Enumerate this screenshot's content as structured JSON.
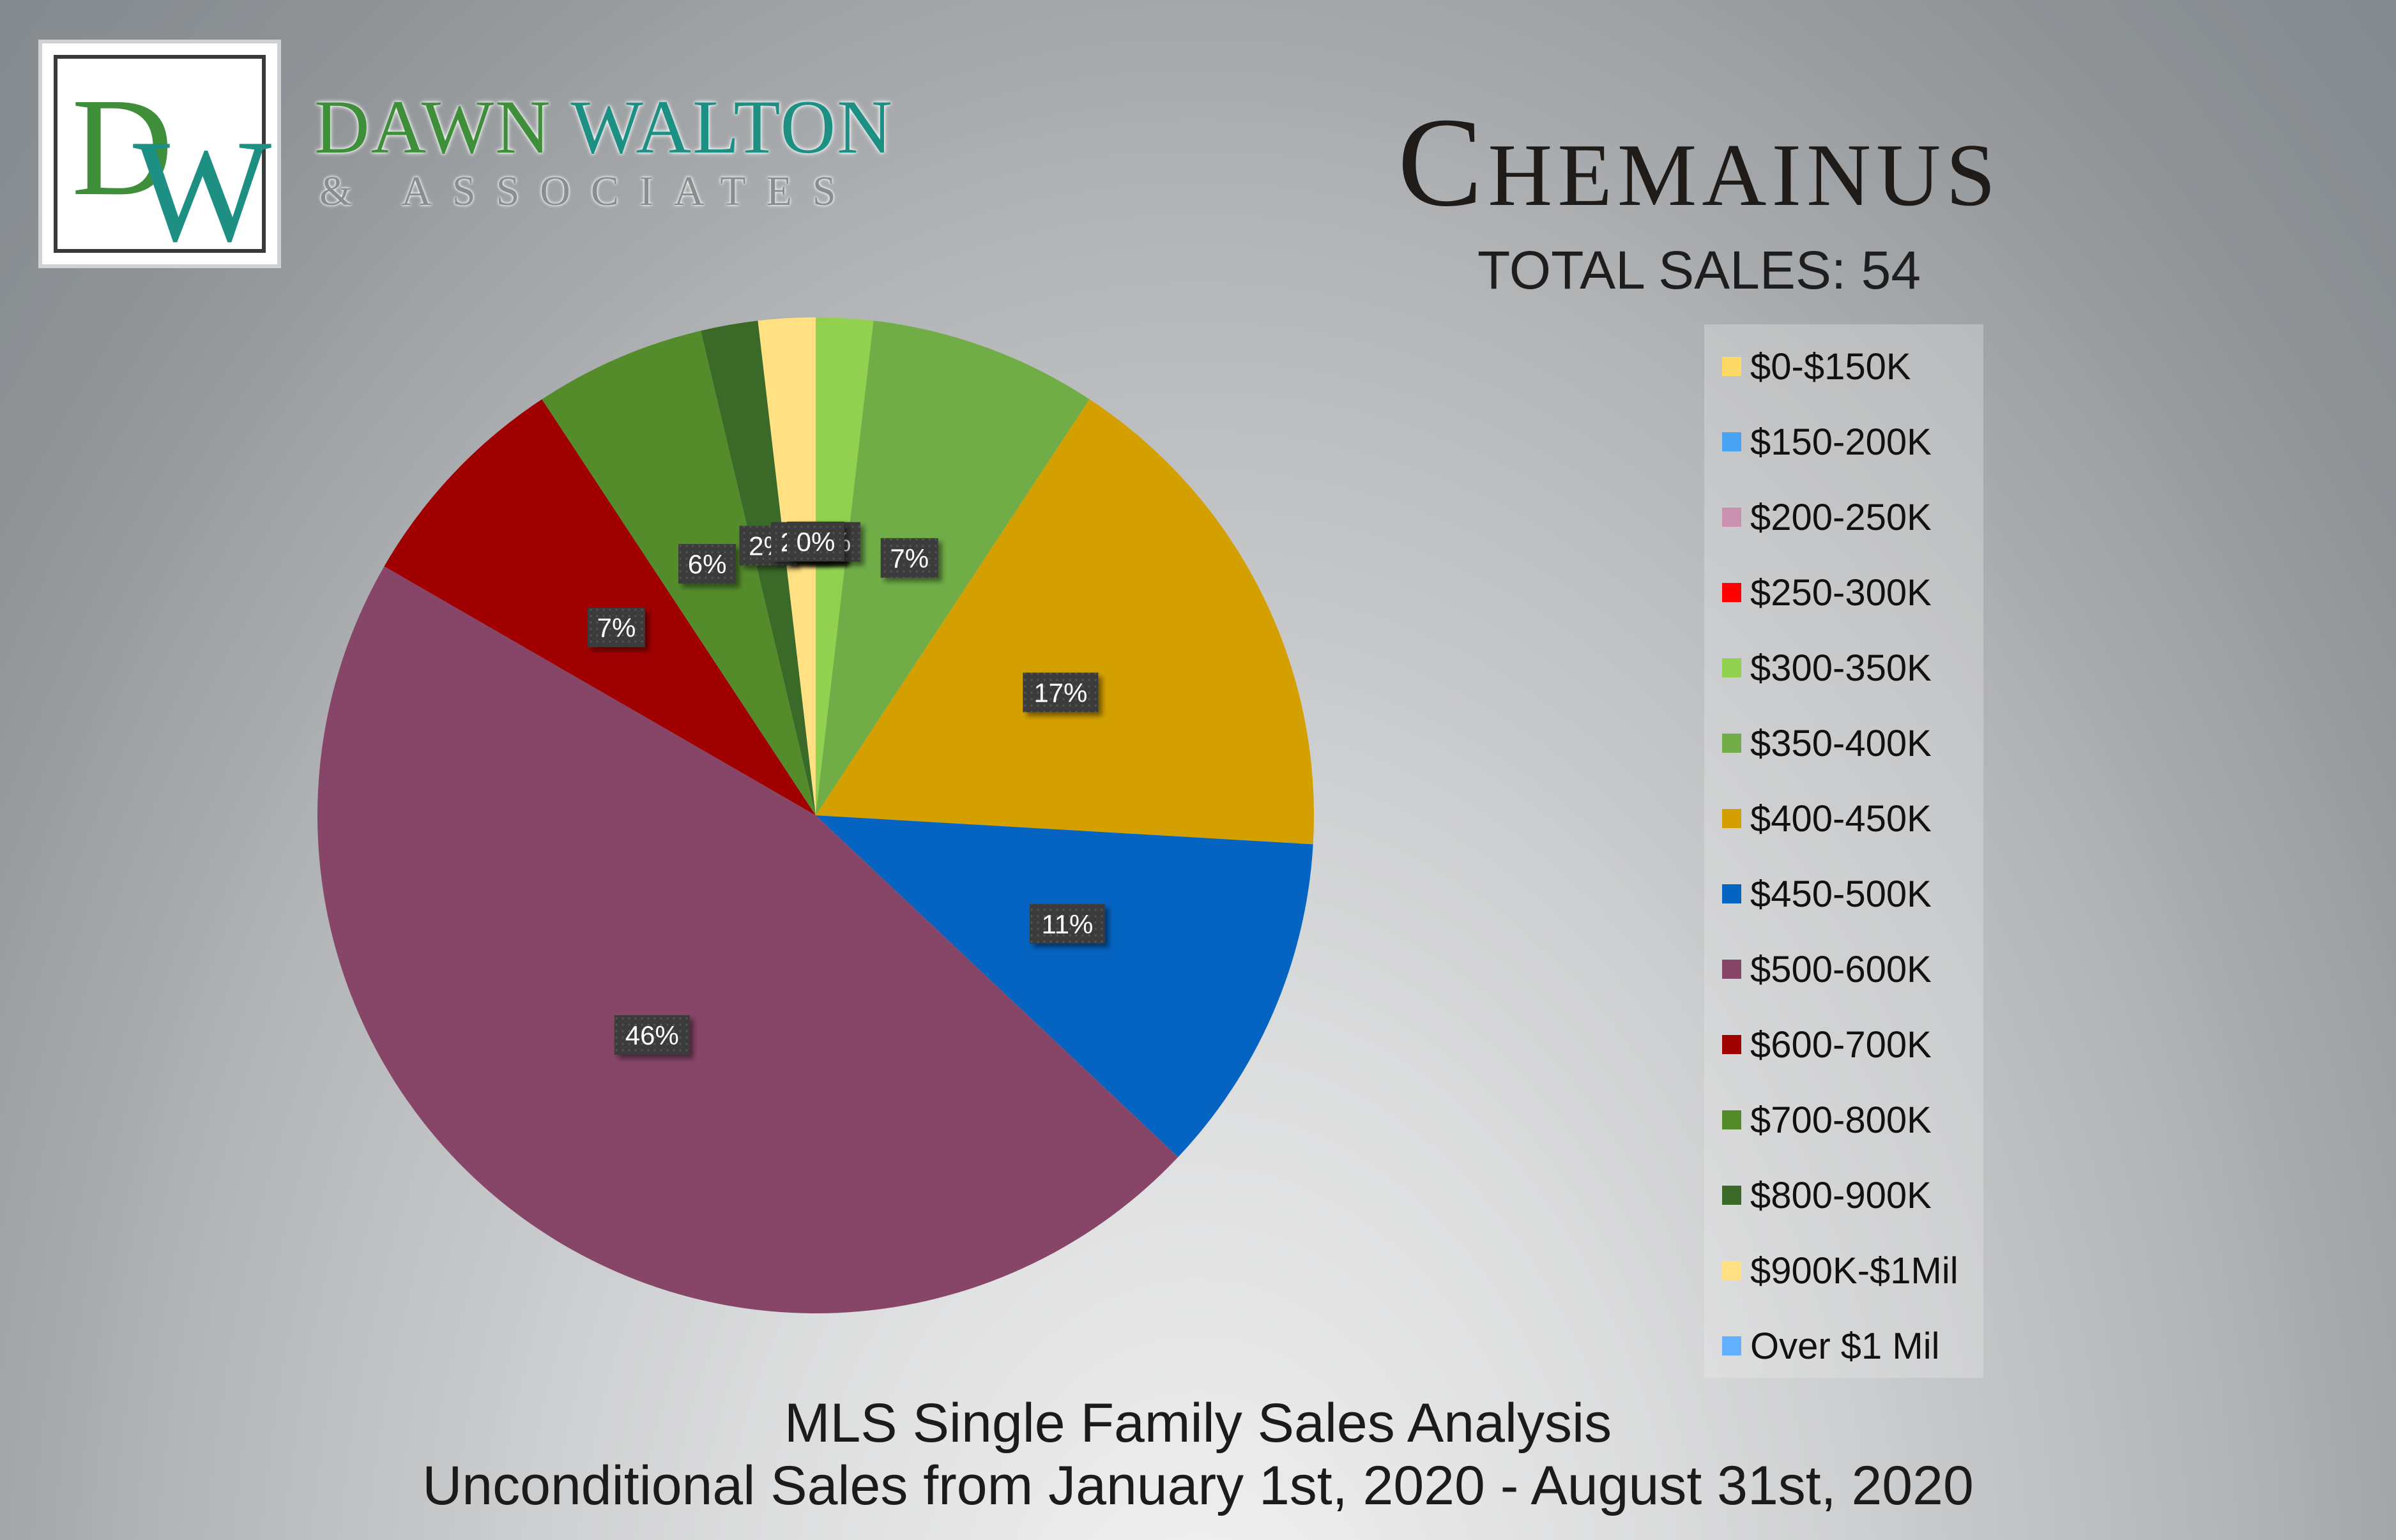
{
  "brand": {
    "logo_letters": "DW",
    "logo_letter_d": "D",
    "logo_letter_w": "W",
    "name_first": "DAWN",
    "name_last": "WALTON",
    "name_sub": "& ASSOCIATES",
    "colors": {
      "green": "#3f8f3a",
      "teal": "#1d8f83"
    }
  },
  "header": {
    "city": "Chemainus",
    "total_sales": "TOTAL SALES: 54"
  },
  "footer": {
    "line1": "MLS Single Family Sales Analysis",
    "line2": "Unconditional Sales from January 1st, 2020 - August 31st, 2020"
  },
  "chart_data": {
    "type": "pie",
    "title": "",
    "start_angle_deg": 0,
    "direction": "clockwise",
    "legend_position": "right",
    "categories": [
      "$0-$150K",
      "$150-200K",
      "$200-250K",
      "$250-300K",
      "$300-350K",
      "$350-400K",
      "$400-450K",
      "$450-500K",
      "$500-600K",
      "$600-700K",
      "$700-800K",
      "$800-900K",
      "$900K-$1Mil",
      "Over $1 Mil"
    ],
    "values": [
      0,
      0,
      0,
      0,
      1,
      4,
      9,
      6,
      25,
      4,
      3,
      1,
      1,
      0
    ],
    "labels": [
      "0%",
      "0%",
      "0%",
      "0%",
      "2%",
      "7%",
      "17%",
      "11%",
      "46%",
      "7%",
      "6%",
      "2%",
      "2%",
      "0%"
    ],
    "colors": [
      "#ffd966",
      "#4aa3f2",
      "#c990b0",
      "#ff0000",
      "#92d050",
      "#70ad47",
      "#d4a000",
      "#0563c1",
      "#874667",
      "#a00000",
      "#548c2b",
      "#3b6a28",
      "#ffe082",
      "#62b0ff"
    ]
  }
}
